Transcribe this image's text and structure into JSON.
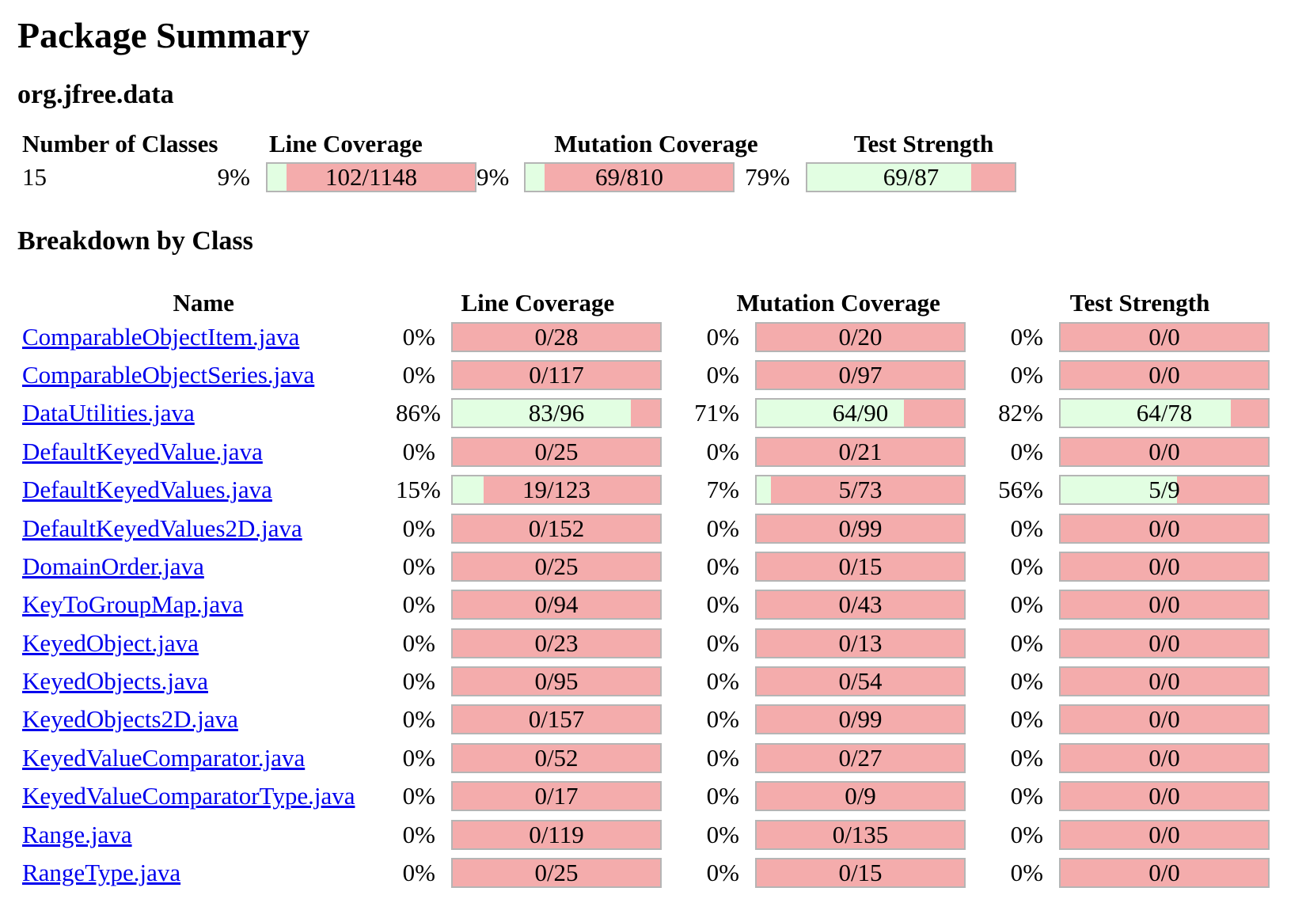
{
  "page_title": "Package Summary",
  "package_name": "org.jfree.data",
  "summary": {
    "headers": {
      "classes": "Number of Classes",
      "line": "Line Coverage",
      "mutation": "Mutation Coverage",
      "strength": "Test Strength"
    },
    "num_classes": "15",
    "line": {
      "pct": "9%",
      "label": "102/1148",
      "fill": 9
    },
    "mutation": {
      "pct": "9%",
      "label": "69/810",
      "fill": 9
    },
    "strength": {
      "pct": "79%",
      "label": "69/87",
      "fill": 79
    }
  },
  "breakdown": {
    "title": "Breakdown by Class",
    "headers": {
      "name": "Name",
      "line": "Line Coverage",
      "mutation": "Mutation Coverage",
      "strength": "Test Strength"
    },
    "rows": [
      {
        "name": "ComparableObjectItem.java",
        "line": {
          "pct": "0%",
          "label": "0/28",
          "fill": 0
        },
        "mutation": {
          "pct": "0%",
          "label": "0/20",
          "fill": 0
        },
        "strength": {
          "pct": "0%",
          "label": "0/0",
          "fill": 0
        }
      },
      {
        "name": "ComparableObjectSeries.java",
        "line": {
          "pct": "0%",
          "label": "0/117",
          "fill": 0
        },
        "mutation": {
          "pct": "0%",
          "label": "0/97",
          "fill": 0
        },
        "strength": {
          "pct": "0%",
          "label": "0/0",
          "fill": 0
        }
      },
      {
        "name": "DataUtilities.java",
        "line": {
          "pct": "86%",
          "label": "83/96",
          "fill": 86
        },
        "mutation": {
          "pct": "71%",
          "label": "64/90",
          "fill": 71
        },
        "strength": {
          "pct": "82%",
          "label": "64/78",
          "fill": 82
        }
      },
      {
        "name": "DefaultKeyedValue.java",
        "line": {
          "pct": "0%",
          "label": "0/25",
          "fill": 0
        },
        "mutation": {
          "pct": "0%",
          "label": "0/21",
          "fill": 0
        },
        "strength": {
          "pct": "0%",
          "label": "0/0",
          "fill": 0
        }
      },
      {
        "name": "DefaultKeyedValues.java",
        "line": {
          "pct": "15%",
          "label": "19/123",
          "fill": 15
        },
        "mutation": {
          "pct": "7%",
          "label": "5/73",
          "fill": 7
        },
        "strength": {
          "pct": "56%",
          "label": "5/9",
          "fill": 56
        }
      },
      {
        "name": "DefaultKeyedValues2D.java",
        "line": {
          "pct": "0%",
          "label": "0/152",
          "fill": 0
        },
        "mutation": {
          "pct": "0%",
          "label": "0/99",
          "fill": 0
        },
        "strength": {
          "pct": "0%",
          "label": "0/0",
          "fill": 0
        }
      },
      {
        "name": "DomainOrder.java",
        "line": {
          "pct": "0%",
          "label": "0/25",
          "fill": 0
        },
        "mutation": {
          "pct": "0%",
          "label": "0/15",
          "fill": 0
        },
        "strength": {
          "pct": "0%",
          "label": "0/0",
          "fill": 0
        }
      },
      {
        "name": "KeyToGroupMap.java",
        "line": {
          "pct": "0%",
          "label": "0/94",
          "fill": 0
        },
        "mutation": {
          "pct": "0%",
          "label": "0/43",
          "fill": 0
        },
        "strength": {
          "pct": "0%",
          "label": "0/0",
          "fill": 0
        }
      },
      {
        "name": "KeyedObject.java",
        "line": {
          "pct": "0%",
          "label": "0/23",
          "fill": 0
        },
        "mutation": {
          "pct": "0%",
          "label": "0/13",
          "fill": 0
        },
        "strength": {
          "pct": "0%",
          "label": "0/0",
          "fill": 0
        }
      },
      {
        "name": "KeyedObjects.java",
        "line": {
          "pct": "0%",
          "label": "0/95",
          "fill": 0
        },
        "mutation": {
          "pct": "0%",
          "label": "0/54",
          "fill": 0
        },
        "strength": {
          "pct": "0%",
          "label": "0/0",
          "fill": 0
        }
      },
      {
        "name": "KeyedObjects2D.java",
        "line": {
          "pct": "0%",
          "label": "0/157",
          "fill": 0
        },
        "mutation": {
          "pct": "0%",
          "label": "0/99",
          "fill": 0
        },
        "strength": {
          "pct": "0%",
          "label": "0/0",
          "fill": 0
        }
      },
      {
        "name": "KeyedValueComparator.java",
        "line": {
          "pct": "0%",
          "label": "0/52",
          "fill": 0
        },
        "mutation": {
          "pct": "0%",
          "label": "0/27",
          "fill": 0
        },
        "strength": {
          "pct": "0%",
          "label": "0/0",
          "fill": 0
        }
      },
      {
        "name": "KeyedValueComparatorType.java",
        "line": {
          "pct": "0%",
          "label": "0/17",
          "fill": 0
        },
        "mutation": {
          "pct": "0%",
          "label": "0/9",
          "fill": 0
        },
        "strength": {
          "pct": "0%",
          "label": "0/0",
          "fill": 0
        }
      },
      {
        "name": "Range.java",
        "line": {
          "pct": "0%",
          "label": "0/119",
          "fill": 0
        },
        "mutation": {
          "pct": "0%",
          "label": "0/135",
          "fill": 0
        },
        "strength": {
          "pct": "0%",
          "label": "0/0",
          "fill": 0
        }
      },
      {
        "name": "RangeType.java",
        "line": {
          "pct": "0%",
          "label": "0/25",
          "fill": 0
        },
        "mutation": {
          "pct": "0%",
          "label": "0/15",
          "fill": 0
        },
        "strength": {
          "pct": "0%",
          "label": "0/0",
          "fill": 0
        }
      }
    ]
  },
  "colors": {
    "covered": "#e2fee2",
    "uncovered": "#f4acac",
    "link": "#0000ee"
  }
}
